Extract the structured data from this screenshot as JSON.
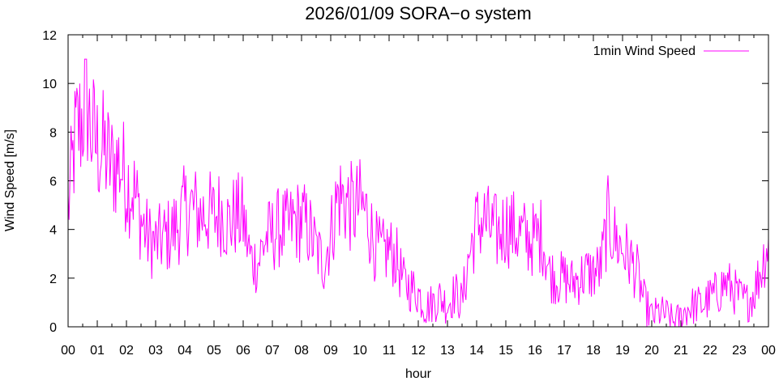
{
  "chart_data": {
    "type": "line",
    "title": "2026/01/09 SORA−o system",
    "xlabel": "hour",
    "ylabel": "Wind Speed [m/s]",
    "xlim": [
      0,
      24
    ],
    "ylim": [
      0,
      12
    ],
    "x_tick_labels": [
      "00",
      "01",
      "02",
      "03",
      "04",
      "05",
      "06",
      "07",
      "08",
      "09",
      "10",
      "11",
      "12",
      "13",
      "14",
      "15",
      "16",
      "17",
      "18",
      "19",
      "20",
      "21",
      "22",
      "23",
      "00"
    ],
    "y_ticks": [
      0,
      2,
      4,
      6,
      8,
      10,
      12
    ],
    "grid": false,
    "legend_position": "top-right",
    "series": [
      {
        "name": "1min Wind Speed",
        "color": "#ff00ff",
        "x": [
          0.0,
          0.25,
          0.5,
          0.6,
          0.75,
          1.0,
          1.25,
          1.5,
          1.75,
          2.0,
          2.25,
          2.5,
          2.75,
          3.0,
          3.25,
          3.5,
          3.75,
          4.0,
          4.25,
          4.5,
          4.75,
          5.0,
          5.25,
          5.5,
          5.75,
          6.0,
          6.25,
          6.5,
          6.75,
          7.0,
          7.25,
          7.5,
          7.75,
          8.0,
          8.25,
          8.5,
          8.75,
          9.0,
          9.25,
          9.5,
          9.75,
          10.0,
          10.25,
          10.5,
          10.75,
          11.0,
          11.25,
          11.5,
          11.75,
          12.0,
          12.25,
          12.5,
          12.75,
          13.0,
          13.25,
          13.5,
          13.75,
          14.0,
          14.25,
          14.5,
          14.75,
          15.0,
          15.25,
          15.5,
          15.75,
          16.0,
          16.25,
          16.5,
          16.75,
          17.0,
          17.25,
          17.5,
          17.75,
          18.0,
          18.25,
          18.5,
          18.75,
          19.0,
          19.25,
          19.5,
          19.75,
          20.0,
          20.25,
          20.5,
          20.75,
          21.0,
          21.25,
          21.5,
          21.75,
          22.0,
          22.25,
          22.5,
          22.75,
          23.0,
          23.25,
          23.5,
          23.75,
          24.0
        ],
        "values": [
          4.8,
          7.8,
          8.6,
          10.2,
          8.2,
          7.4,
          7.2,
          6.6,
          6.8,
          6.0,
          5.6,
          4.4,
          3.6,
          3.4,
          3.6,
          3.8,
          4.2,
          4.8,
          4.9,
          4.6,
          4.7,
          4.5,
          4.8,
          4.2,
          4.6,
          4.4,
          2.8,
          2.6,
          3.6,
          3.8,
          4.1,
          4.0,
          4.3,
          4.4,
          4.0,
          3.2,
          2.6,
          3.8,
          5.4,
          5.2,
          4.8,
          5.0,
          4.6,
          3.4,
          3.0,
          3.2,
          2.8,
          1.8,
          1.6,
          1.4,
          0.8,
          1.0,
          1.2,
          0.9,
          1.4,
          1.0,
          3.0,
          4.2,
          4.4,
          4.0,
          3.8,
          4.2,
          4.0,
          3.8,
          3.6,
          3.6,
          3.8,
          2.2,
          2.0,
          2.0,
          1.8,
          2.0,
          2.2,
          2.2,
          2.4,
          4.4,
          3.6,
          3.2,
          2.8,
          2.2,
          1.0,
          0.4,
          0.6,
          0.5,
          0.2,
          0.4,
          0.8,
          0.9,
          0.9,
          1.2,
          1.4,
          1.8,
          1.6,
          1.2,
          1.0,
          1.4,
          2.4,
          3.6
        ]
      }
    ]
  }
}
